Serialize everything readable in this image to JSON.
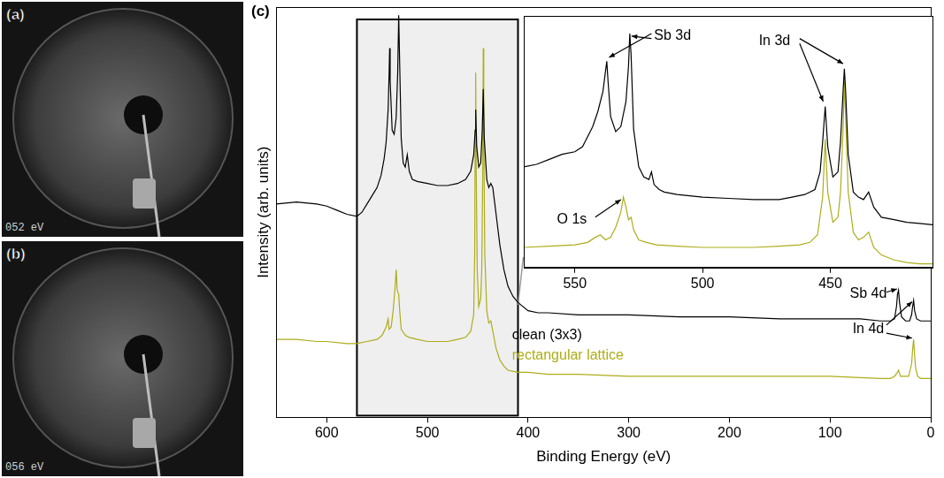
{
  "panels": [
    {
      "label": "(a)",
      "caption": "052 eV"
    },
    {
      "label": "(b)",
      "caption": "056 eV"
    }
  ],
  "chart_data": [
    {
      "type": "line",
      "label": "(c)",
      "x_label": "Binding Energy (eV)",
      "y_label": "Intensity (arb. units)",
      "xlim": [
        650,
        0
      ],
      "xticks": [
        600,
        500,
        400,
        300,
        200,
        100,
        0
      ],
      "ylim": [
        0,
        100
      ],
      "tick_labels": "x",
      "grid": false,
      "series": [
        {
          "name": "clean (3x3)",
          "color": "#000000",
          "x": [
            650,
            630,
            610,
            600,
            590,
            580,
            570,
            565,
            560,
            555,
            550,
            546,
            543,
            541,
            539,
            538,
            537.5,
            537,
            535,
            533,
            531,
            529.5,
            528.5,
            527.5,
            526,
            524,
            522,
            520,
            518,
            515,
            510,
            500,
            490,
            480,
            470,
            462,
            457,
            454,
            452.5,
            452,
            451,
            449,
            447,
            445.5,
            444.5,
            443.5,
            441,
            439,
            437,
            435,
            432,
            428,
            424,
            420,
            415,
            410,
            400,
            390,
            380,
            350,
            300,
            250,
            200,
            150,
            100,
            70,
            50,
            40,
            36,
            34,
            33,
            32,
            31,
            29,
            25,
            21,
            19,
            18,
            17,
            16,
            14,
            10,
            5,
            0
          ],
          "values": [
            52,
            52.5,
            52,
            51.5,
            50.5,
            49.5,
            49,
            50,
            52,
            54,
            56,
            59,
            63,
            67,
            75,
            84,
            90,
            82,
            70,
            69,
            73,
            84,
            98,
            86,
            68,
            62,
            61,
            64,
            60,
            58,
            57.5,
            57,
            56.5,
            56.5,
            57,
            58,
            60,
            64,
            70,
            75,
            66,
            61,
            62,
            70,
            80,
            68,
            58,
            56,
            57,
            56,
            50,
            42,
            36,
            32,
            29.5,
            28,
            26,
            25.5,
            25.5,
            25,
            25,
            24.5,
            24.5,
            24,
            24,
            24,
            23.5,
            23.5,
            24,
            27,
            30,
            31,
            28,
            24.5,
            23.5,
            23.5,
            25,
            27,
            28.5,
            26,
            24,
            23.5,
            23.5,
            23.5
          ]
        },
        {
          "name": "rectangular lattice",
          "color": "#adad1a",
          "x": [
            650,
            630,
            610,
            600,
            580,
            570,
            560,
            550,
            545,
            541,
            539,
            538,
            536,
            534,
            532,
            531,
            530,
            528.5,
            527.5,
            526,
            522,
            518,
            510,
            500,
            490,
            480,
            470,
            462,
            457,
            454,
            453,
            452.5,
            452,
            451.5,
            450.5,
            449,
            447,
            446,
            445,
            444.5,
            444,
            443,
            441,
            439,
            437,
            435,
            432,
            428,
            424,
            420,
            410,
            400,
            380,
            350,
            300,
            250,
            200,
            150,
            100,
            50,
            40,
            36,
            33,
            32,
            30,
            22,
            19,
            18,
            17,
            16,
            15,
            13,
            10,
            5,
            0
          ],
          "values": [
            19,
            19,
            18.5,
            18.5,
            18,
            18,
            18.5,
            19,
            20,
            22,
            24,
            21.5,
            22,
            26,
            32,
            36,
            31,
            30,
            26,
            21.5,
            20,
            19.5,
            19,
            18.5,
            18.5,
            18.5,
            19,
            19.5,
            21,
            25,
            40,
            70,
            84,
            60,
            36,
            27,
            29,
            36,
            60,
            90,
            70,
            40,
            26,
            23,
            23.5,
            21,
            17,
            14,
            12.5,
            11.5,
            11,
            11,
            10.5,
            10.5,
            10,
            10,
            10,
            10,
            10,
            9.5,
            9.5,
            10,
            11,
            11.5,
            10,
            10,
            13,
            16.5,
            19,
            15,
            12,
            10,
            9.5,
            9.5,
            9.5
          ]
        }
      ],
      "annotations": [
        "Sb 4d",
        "In 4d"
      ]
    },
    {
      "type": "line",
      "xlim": [
        570,
        410
      ],
      "xticks": [
        550,
        500,
        450
      ],
      "ylim": [
        0,
        100
      ],
      "tick_labels": "x",
      "grid": false,
      "series": [
        {
          "color": "#000000",
          "x": [
            570,
            565,
            560,
            555,
            550,
            547,
            545,
            543,
            541,
            539,
            538,
            537.5,
            537,
            536,
            534,
            532,
            530,
            529,
            528.5,
            528,
            527,
            525,
            523,
            521,
            520,
            519,
            517,
            515,
            510,
            500,
            490,
            480,
            470,
            465,
            460,
            456,
            454,
            453,
            452,
            451,
            449,
            447,
            446,
            445,
            444.5,
            444,
            443,
            441,
            439,
            437,
            435,
            433,
            430,
            425,
            420,
            415,
            410
          ],
          "values": [
            40,
            41,
            43,
            45,
            46,
            48,
            52,
            56,
            62,
            70,
            78,
            82,
            74,
            60,
            54,
            56,
            66,
            80,
            93,
            85,
            55,
            40,
            36,
            35,
            38,
            33,
            31,
            30,
            29,
            28,
            27.5,
            27,
            27,
            28,
            29,
            31,
            38,
            50,
            64,
            48,
            36,
            38,
            50,
            70,
            79,
            70,
            45,
            30,
            28,
            27,
            30,
            24,
            20,
            19,
            18,
            17.5,
            17
          ]
        },
        {
          "color": "#adad1a",
          "x": [
            570,
            560,
            550,
            545,
            542,
            540,
            538,
            536,
            534,
            532,
            531,
            530,
            529,
            528,
            527,
            525,
            522,
            518,
            510,
            500,
            490,
            480,
            470,
            462,
            458,
            455,
            453,
            452,
            451,
            449,
            447,
            446,
            445,
            444.5,
            444,
            443,
            441,
            439,
            437,
            435,
            433,
            430,
            425,
            420,
            415,
            410
          ],
          "values": [
            8,
            8.5,
            9,
            10,
            12,
            13,
            11,
            12,
            16,
            22,
            28,
            24,
            19,
            20,
            15,
            11,
            10,
            9,
            8.5,
            8,
            8,
            8,
            8.5,
            9,
            10,
            13,
            28,
            51,
            30,
            18,
            20,
            30,
            55,
            74,
            60,
            30,
            14,
            11,
            12,
            14,
            8,
            5,
            3,
            2,
            1.5,
            1.5
          ]
        }
      ],
      "annotations": [
        "Sb 3d",
        "In 3d",
        "O 1s"
      ]
    }
  ]
}
